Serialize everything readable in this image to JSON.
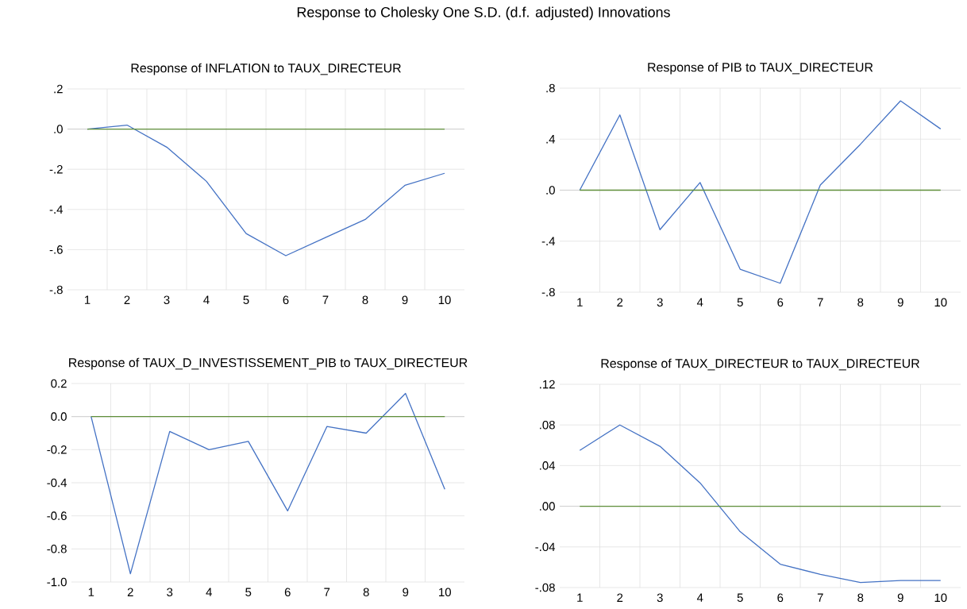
{
  "chart_data": [
    {
      "type": "line",
      "title": "Response of INFLATION to TAUX_DIRECTEUR",
      "annotations": [
        "Response to Cholesky One S.D. (d.f. adjusted) Innovations"
      ],
      "categories": [
        "1",
        "2",
        "3",
        "4",
        "5",
        "6",
        "7",
        "8",
        "9",
        "10"
      ],
      "grid": true,
      "ylim": [
        -0.8,
        0.2
      ],
      "yticks": [
        {
          "value": -0.8,
          "label": "-.8"
        },
        {
          "value": -0.6,
          "label": "-.6"
        },
        {
          "value": -0.4,
          "label": "-.4"
        },
        {
          "value": -0.2,
          "label": "-.2"
        },
        {
          "value": 0,
          "label": ".0"
        },
        {
          "value": 0.2,
          "label": ".2"
        }
      ],
      "series": [
        {
          "color": "#4472c4",
          "values": [
            0,
            0.02,
            -0.09,
            -0.26,
            -0.52,
            -0.63,
            -0.54,
            -0.45,
            -0.28,
            -0.22
          ]
        },
        {
          "color": "#5f8f3a",
          "values": [
            0,
            0,
            0,
            0,
            0,
            0,
            0,
            0,
            0,
            0
          ]
        }
      ]
    },
    {
      "type": "line",
      "title": "Response of PIB to TAUX_DIRECTEUR",
      "categories": [
        "1",
        "2",
        "3",
        "4",
        "5",
        "6",
        "7",
        "8",
        "9",
        "10"
      ],
      "grid": true,
      "ylim": [
        -0.8,
        0.8
      ],
      "yticks": [
        {
          "value": -0.8,
          "label": "-.8"
        },
        {
          "value": -0.4,
          "label": "-.4"
        },
        {
          "value": 0,
          "label": ".0"
        },
        {
          "value": 0.4,
          "label": ".4"
        },
        {
          "value": 0.8,
          "label": ".8"
        }
      ],
      "series": [
        {
          "color": "#4472c4",
          "values": [
            0,
            0.59,
            -0.31,
            0.06,
            -0.62,
            -0.73,
            0.04,
            0.36,
            0.7,
            0.48
          ]
        },
        {
          "color": "#5f8f3a",
          "values": [
            0,
            0,
            0,
            0,
            0,
            0,
            0,
            0,
            0,
            0
          ]
        }
      ]
    },
    {
      "type": "line",
      "title": "Response of TAUX_D_INVESTISSEMENT_PIB to TAUX_DIRECTEUR",
      "categories": [
        "1",
        "2",
        "3",
        "4",
        "5",
        "6",
        "7",
        "8",
        "9",
        "10"
      ],
      "grid": true,
      "ylim": [
        -1.0,
        0.2
      ],
      "yticks": [
        {
          "value": -1.0,
          "label": "-1.0"
        },
        {
          "value": -0.8,
          "label": "-0.8"
        },
        {
          "value": -0.6,
          "label": "-0.6"
        },
        {
          "value": -0.4,
          "label": "-0.4"
        },
        {
          "value": -0.2,
          "label": "-0.2"
        },
        {
          "value": 0,
          "label": "0.0"
        },
        {
          "value": 0.2,
          "label": "0.2"
        }
      ],
      "series": [
        {
          "color": "#4472c4",
          "values": [
            0,
            -0.95,
            -0.09,
            -0.2,
            -0.15,
            -0.57,
            -0.06,
            -0.1,
            0.14,
            -0.44
          ]
        },
        {
          "color": "#5f8f3a",
          "values": [
            0,
            0,
            0,
            0,
            0,
            0,
            0,
            0,
            0,
            0
          ]
        }
      ]
    },
    {
      "type": "line",
      "title": "Response of TAUX_DIRECTEUR to TAUX_DIRECTEUR",
      "categories": [
        "1",
        "2",
        "3",
        "4",
        "5",
        "6",
        "7",
        "8",
        "9",
        "10"
      ],
      "grid": true,
      "ylim": [
        -0.08,
        0.12
      ],
      "yticks": [
        {
          "value": -0.08,
          "label": "-.08"
        },
        {
          "value": -0.04,
          "label": "-.04"
        },
        {
          "value": 0,
          "label": ".00"
        },
        {
          "value": 0.04,
          "label": ".04"
        },
        {
          "value": 0.08,
          "label": ".08"
        },
        {
          "value": 0.12,
          "label": ".12"
        }
      ],
      "series": [
        {
          "color": "#4472c4",
          "values": [
            0.055,
            0.08,
            0.059,
            0.023,
            -0.025,
            -0.057,
            -0.067,
            -0.075,
            -0.073,
            -0.073
          ]
        },
        {
          "color": "#5f8f3a",
          "values": [
            0,
            0,
            0,
            0,
            0,
            0,
            0,
            0,
            0,
            0
          ]
        }
      ]
    }
  ]
}
